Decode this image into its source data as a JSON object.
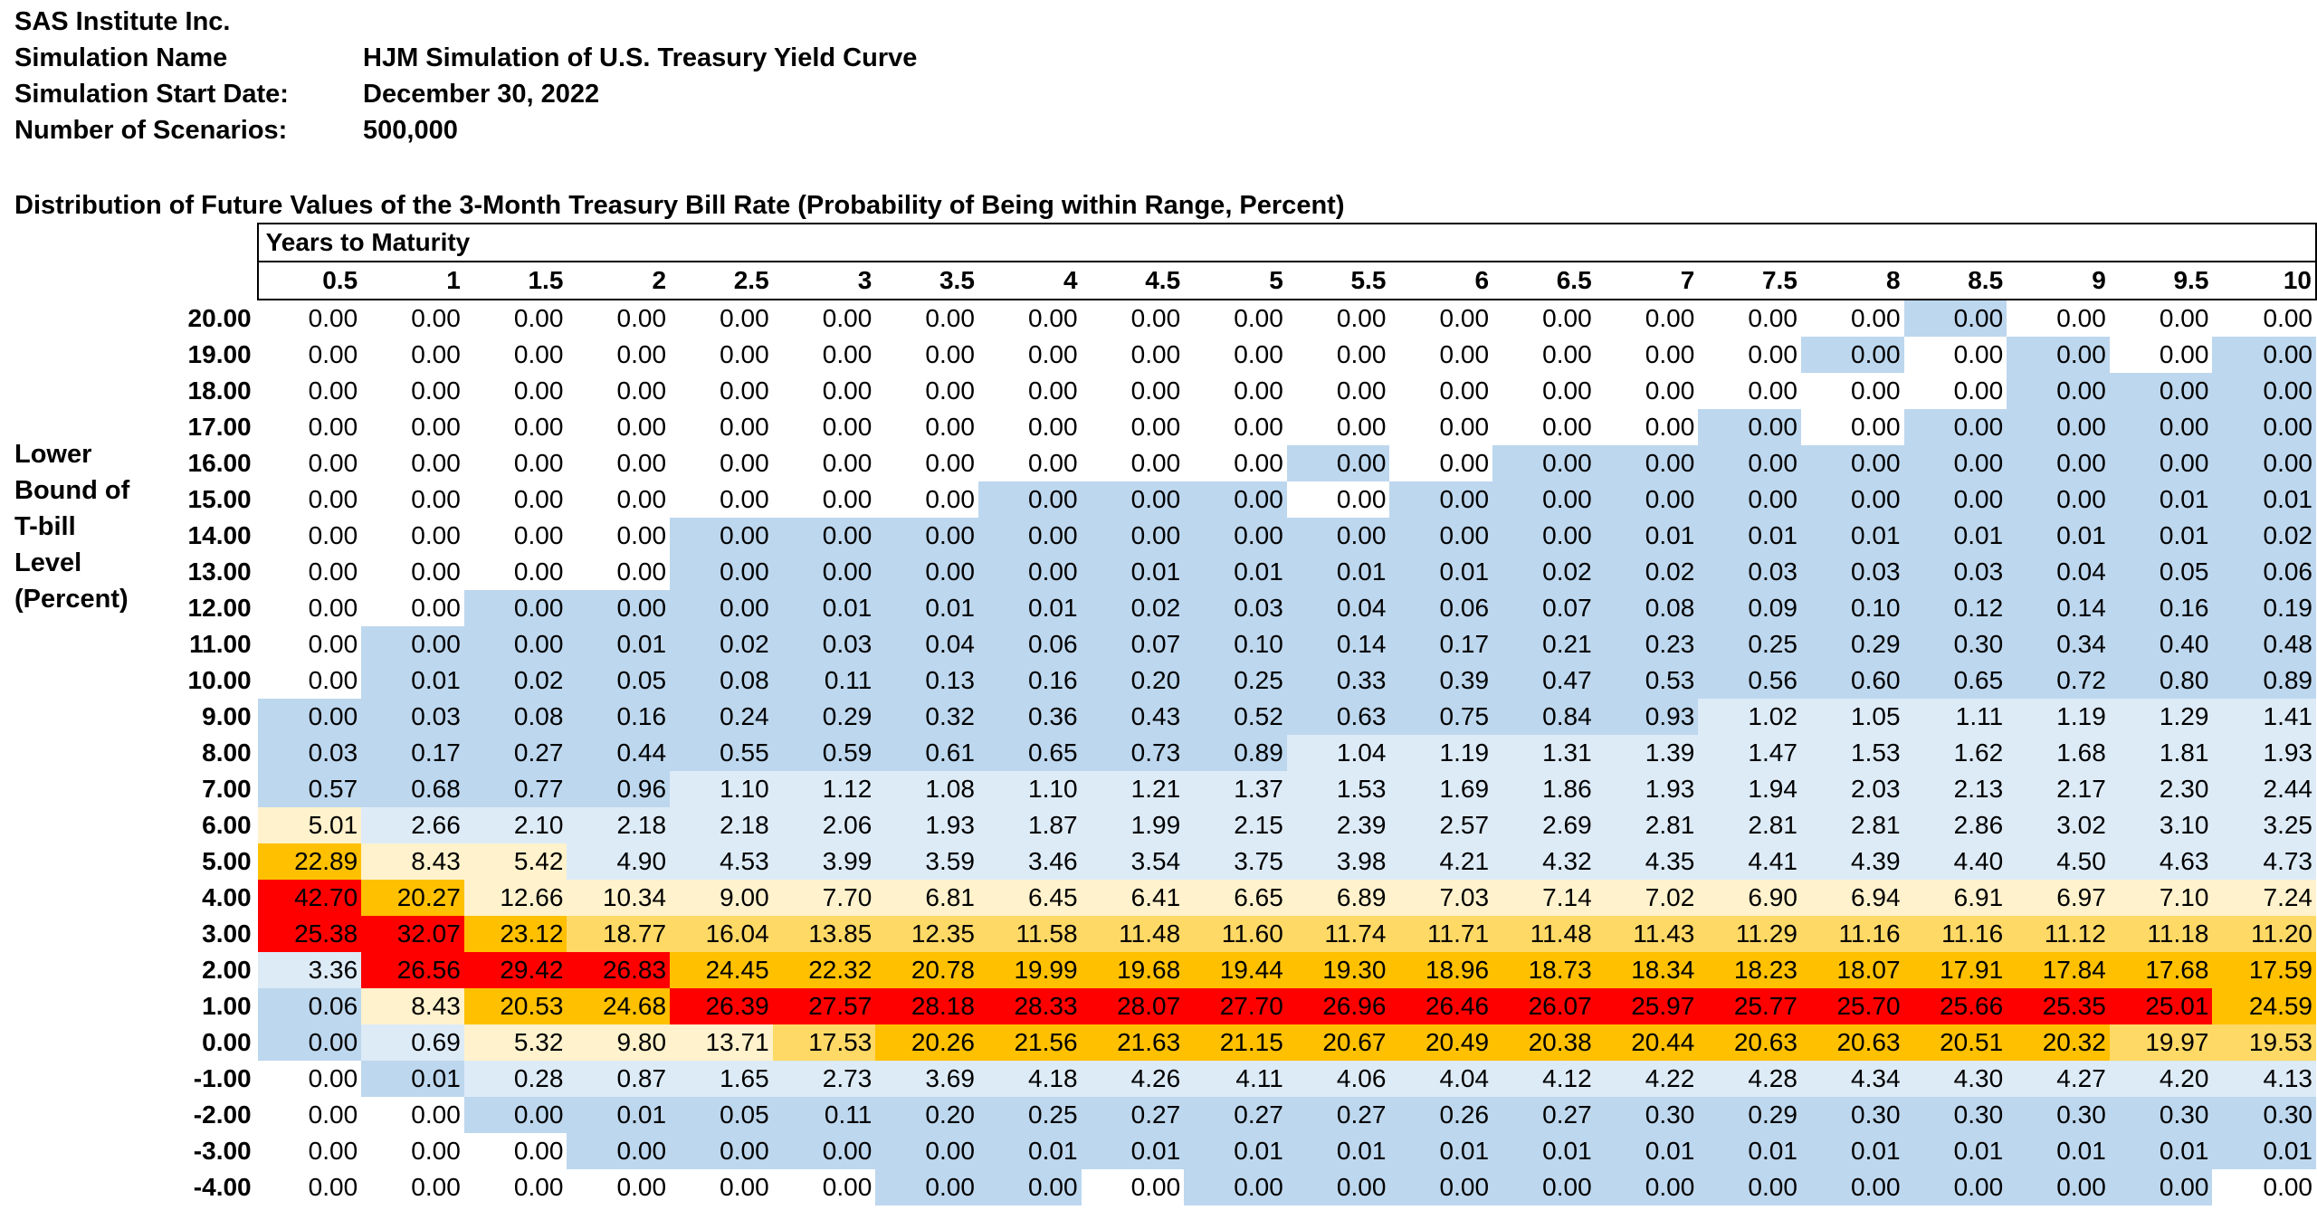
{
  "header": {
    "company": "SAS Institute Inc.",
    "simulation_name_label": "Simulation Name",
    "simulation_name": "HJM Simulation of U.S. Treasury Yield Curve",
    "start_date_label": "Simulation Start Date:",
    "start_date": "December 30, 2022",
    "scenarios_label": "Number of Scenarios:",
    "scenarios": "500,000"
  },
  "table_title": "Distribution of Future Values of the 3-Month Treasury Bill Rate (Probability of Being within Range, Percent)",
  "column_group_label": "Years to Maturity",
  "row_axis_label": [
    "Lower",
    "Bound of",
    "T-bill",
    "Level",
    "(Percent)"
  ],
  "colors": {
    "white": "#ffffff",
    "blue": "#bdd7ee",
    "light_blue": "#ddebf7",
    "cream": "#fff2cc",
    "yellow": "#ffd966",
    "orange": "#ffc000",
    "red": "#ff0000"
  },
  "chart_data": {
    "type": "heatmap",
    "x_label": "Years to Maturity",
    "y_label": "Lower Bound of T-bill Level (Percent)",
    "columns": [
      "0.5",
      "1",
      "1.5",
      "2",
      "2.5",
      "3",
      "3.5",
      "4",
      "4.5",
      "5",
      "5.5",
      "6",
      "6.5",
      "7",
      "7.5",
      "8",
      "8.5",
      "9",
      "9.5",
      "10"
    ],
    "rows": [
      {
        "label": "20.00",
        "values": [
          "0.00",
          "0.00",
          "0.00",
          "0.00",
          "0.00",
          "0.00",
          "0.00",
          "0.00",
          "0.00",
          "0.00",
          "0.00",
          "0.00",
          "0.00",
          "0.00",
          "0.00",
          "0.00",
          "0.00",
          "0.00",
          "0.00",
          "0.00"
        ],
        "fills": "wwwwwwwwwwwwwwwwBwww"
      },
      {
        "label": "19.00",
        "values": [
          "0.00",
          "0.00",
          "0.00",
          "0.00",
          "0.00",
          "0.00",
          "0.00",
          "0.00",
          "0.00",
          "0.00",
          "0.00",
          "0.00",
          "0.00",
          "0.00",
          "0.00",
          "0.00",
          "0.00",
          "0.00",
          "0.00",
          "0.00"
        ],
        "fills": "wwwwwwwwwwwwwwwBwBwB"
      },
      {
        "label": "18.00",
        "values": [
          "0.00",
          "0.00",
          "0.00",
          "0.00",
          "0.00",
          "0.00",
          "0.00",
          "0.00",
          "0.00",
          "0.00",
          "0.00",
          "0.00",
          "0.00",
          "0.00",
          "0.00",
          "0.00",
          "0.00",
          "0.00",
          "0.00",
          "0.00"
        ],
        "fills": "wwwwwwwwwwwwwwwwwBBB"
      },
      {
        "label": "17.00",
        "values": [
          "0.00",
          "0.00",
          "0.00",
          "0.00",
          "0.00",
          "0.00",
          "0.00",
          "0.00",
          "0.00",
          "0.00",
          "0.00",
          "0.00",
          "0.00",
          "0.00",
          "0.00",
          "0.00",
          "0.00",
          "0.00",
          "0.00",
          "0.00"
        ],
        "fills": "wwwwwwwwwwwwwwBwBBBB"
      },
      {
        "label": "16.00",
        "values": [
          "0.00",
          "0.00",
          "0.00",
          "0.00",
          "0.00",
          "0.00",
          "0.00",
          "0.00",
          "0.00",
          "0.00",
          "0.00",
          "0.00",
          "0.00",
          "0.00",
          "0.00",
          "0.00",
          "0.00",
          "0.00",
          "0.00",
          "0.00"
        ],
        "fills": "wwwwwwwwwwBwBBBBBBBB"
      },
      {
        "label": "15.00",
        "values": [
          "0.00",
          "0.00",
          "0.00",
          "0.00",
          "0.00",
          "0.00",
          "0.00",
          "0.00",
          "0.00",
          "0.00",
          "0.00",
          "0.00",
          "0.00",
          "0.00",
          "0.00",
          "0.00",
          "0.00",
          "0.00",
          "0.01",
          "0.01"
        ],
        "fills": "wwwwwwwBBBwBBBBBBBBB"
      },
      {
        "label": "14.00",
        "values": [
          "0.00",
          "0.00",
          "0.00",
          "0.00",
          "0.00",
          "0.00",
          "0.00",
          "0.00",
          "0.00",
          "0.00",
          "0.00",
          "0.00",
          "0.00",
          "0.01",
          "0.01",
          "0.01",
          "0.01",
          "0.01",
          "0.01",
          "0.02"
        ],
        "fills": "wwwwBBBBBBBBBBBBBBBB"
      },
      {
        "label": "13.00",
        "values": [
          "0.00",
          "0.00",
          "0.00",
          "0.00",
          "0.00",
          "0.00",
          "0.00",
          "0.00",
          "0.01",
          "0.01",
          "0.01",
          "0.01",
          "0.02",
          "0.02",
          "0.03",
          "0.03",
          "0.03",
          "0.04",
          "0.05",
          "0.06"
        ],
        "fills": "wwwwBBBBBBBBBBBBBBBB"
      },
      {
        "label": "12.00",
        "values": [
          "0.00",
          "0.00",
          "0.00",
          "0.00",
          "0.00",
          "0.01",
          "0.01",
          "0.01",
          "0.02",
          "0.03",
          "0.04",
          "0.06",
          "0.07",
          "0.08",
          "0.09",
          "0.10",
          "0.12",
          "0.14",
          "0.16",
          "0.19"
        ],
        "fills": "wwBBBBBBBBBBBBBBBBBB"
      },
      {
        "label": "11.00",
        "values": [
          "0.00",
          "0.00",
          "0.00",
          "0.01",
          "0.02",
          "0.03",
          "0.04",
          "0.06",
          "0.07",
          "0.10",
          "0.14",
          "0.17",
          "0.21",
          "0.23",
          "0.25",
          "0.29",
          "0.30",
          "0.34",
          "0.40",
          "0.48"
        ],
        "fills": "wBBBBBBBBBBBBBBBBBBB"
      },
      {
        "label": "10.00",
        "values": [
          "0.00",
          "0.01",
          "0.02",
          "0.05",
          "0.08",
          "0.11",
          "0.13",
          "0.16",
          "0.20",
          "0.25",
          "0.33",
          "0.39",
          "0.47",
          "0.53",
          "0.56",
          "0.60",
          "0.65",
          "0.72",
          "0.80",
          "0.89"
        ],
        "fills": "wBBBBBBBBBBBBBBBBBBB"
      },
      {
        "label": "9.00",
        "values": [
          "0.00",
          "0.03",
          "0.08",
          "0.16",
          "0.24",
          "0.29",
          "0.32",
          "0.36",
          "0.43",
          "0.52",
          "0.63",
          "0.75",
          "0.84",
          "0.93",
          "1.02",
          "1.05",
          "1.11",
          "1.19",
          "1.29",
          "1.41"
        ],
        "fills": "BBBBBBBBBBBBBBLLLLLL"
      },
      {
        "label": "8.00",
        "values": [
          "0.03",
          "0.17",
          "0.27",
          "0.44",
          "0.55",
          "0.59",
          "0.61",
          "0.65",
          "0.73",
          "0.89",
          "1.04",
          "1.19",
          "1.31",
          "1.39",
          "1.47",
          "1.53",
          "1.62",
          "1.68",
          "1.81",
          "1.93"
        ],
        "fills": "BBBBBBBBBBLLLLLLLLLL"
      },
      {
        "label": "7.00",
        "values": [
          "0.57",
          "0.68",
          "0.77",
          "0.96",
          "1.10",
          "1.12",
          "1.08",
          "1.10",
          "1.21",
          "1.37",
          "1.53",
          "1.69",
          "1.86",
          "1.93",
          "1.94",
          "2.03",
          "2.13",
          "2.17",
          "2.30",
          "2.44"
        ],
        "fills": "BBBBLLLLLLLLLLLLLLLL"
      },
      {
        "label": "6.00",
        "values": [
          "5.01",
          "2.66",
          "2.10",
          "2.18",
          "2.18",
          "2.06",
          "1.93",
          "1.87",
          "1.99",
          "2.15",
          "2.39",
          "2.57",
          "2.69",
          "2.81",
          "2.81",
          "2.81",
          "2.86",
          "3.02",
          "3.10",
          "3.25"
        ],
        "fills": "CLLLLLLLLLLLLLLLLLLL"
      },
      {
        "label": "5.00",
        "values": [
          "22.89",
          "8.43",
          "5.42",
          "4.90",
          "4.53",
          "3.99",
          "3.59",
          "3.46",
          "3.54",
          "3.75",
          "3.98",
          "4.21",
          "4.32",
          "4.35",
          "4.41",
          "4.39",
          "4.40",
          "4.50",
          "4.63",
          "4.73"
        ],
        "fills": "OCCLLLLLLLLLLLLLLLLL"
      },
      {
        "label": "4.00",
        "values": [
          "42.70",
          "20.27",
          "12.66",
          "10.34",
          "9.00",
          "7.70",
          "6.81",
          "6.45",
          "6.41",
          "6.65",
          "6.89",
          "7.03",
          "7.14",
          "7.02",
          "6.90",
          "6.94",
          "6.91",
          "6.97",
          "7.10",
          "7.24"
        ],
        "fills": "ROCCCCCCCCCCCCCCCCCC"
      },
      {
        "label": "3.00",
        "values": [
          "25.38",
          "32.07",
          "23.12",
          "18.77",
          "16.04",
          "13.85",
          "12.35",
          "11.58",
          "11.48",
          "11.60",
          "11.74",
          "11.71",
          "11.48",
          "11.43",
          "11.29",
          "11.16",
          "11.16",
          "11.12",
          "11.18",
          "11.20"
        ],
        "fills": "RROYYYYYYYYYYYYYYYYY"
      },
      {
        "label": "2.00",
        "values": [
          "3.36",
          "26.56",
          "29.42",
          "26.83",
          "24.45",
          "22.32",
          "20.78",
          "19.99",
          "19.68",
          "19.44",
          "19.30",
          "18.96",
          "18.73",
          "18.34",
          "18.23",
          "18.07",
          "17.91",
          "17.84",
          "17.68",
          "17.59"
        ],
        "fills": "LRRROOOOOOOOOOOOOOOO"
      },
      {
        "label": "1.00",
        "values": [
          "0.06",
          "8.43",
          "20.53",
          "24.68",
          "26.39",
          "27.57",
          "28.18",
          "28.33",
          "28.07",
          "27.70",
          "26.96",
          "26.46",
          "26.07",
          "25.97",
          "25.77",
          "25.70",
          "25.66",
          "25.35",
          "25.01",
          "24.59"
        ],
        "fills": "BCOORRRRRRRRRRRRRRRO"
      },
      {
        "label": "0.00",
        "values": [
          "0.00",
          "0.69",
          "5.32",
          "9.80",
          "13.71",
          "17.53",
          "20.26",
          "21.56",
          "21.63",
          "21.15",
          "20.67",
          "20.49",
          "20.38",
          "20.44",
          "20.63",
          "20.63",
          "20.51",
          "20.32",
          "19.97",
          "19.53"
        ],
        "fills": "BLCCCYOOOOOOOOOOOOYY"
      },
      {
        "label": "-1.00",
        "values": [
          "0.00",
          "0.01",
          "0.28",
          "0.87",
          "1.65",
          "2.73",
          "3.69",
          "4.18",
          "4.26",
          "4.11",
          "4.06",
          "4.04",
          "4.12",
          "4.22",
          "4.28",
          "4.34",
          "4.30",
          "4.27",
          "4.20",
          "4.13"
        ],
        "fills": "wBLLLLLLLLLLLLLLLLLL"
      },
      {
        "label": "-2.00",
        "values": [
          "0.00",
          "0.00",
          "0.00",
          "0.01",
          "0.05",
          "0.11",
          "0.20",
          "0.25",
          "0.27",
          "0.27",
          "0.27",
          "0.26",
          "0.27",
          "0.30",
          "0.29",
          "0.30",
          "0.30",
          "0.30",
          "0.30",
          "0.30"
        ],
        "fills": "wwBBBBBBBBBBBBBBBBBB"
      },
      {
        "label": "-3.00",
        "values": [
          "0.00",
          "0.00",
          "0.00",
          "0.00",
          "0.00",
          "0.00",
          "0.00",
          "0.01",
          "0.01",
          "0.01",
          "0.01",
          "0.01",
          "0.01",
          "0.01",
          "0.01",
          "0.01",
          "0.01",
          "0.01",
          "0.01",
          "0.01"
        ],
        "fills": "wwwBBBBBBBBBBBBBBBBB"
      },
      {
        "label": "-4.00",
        "values": [
          "0.00",
          "0.00",
          "0.00",
          "0.00",
          "0.00",
          "0.00",
          "0.00",
          "0.00",
          "0.00",
          "0.00",
          "0.00",
          "0.00",
          "0.00",
          "0.00",
          "0.00",
          "0.00",
          "0.00",
          "0.00",
          "0.00",
          "0.00"
        ],
        "fills": "wwwwwwBBwBBBBBBBBBBw"
      }
    ]
  }
}
